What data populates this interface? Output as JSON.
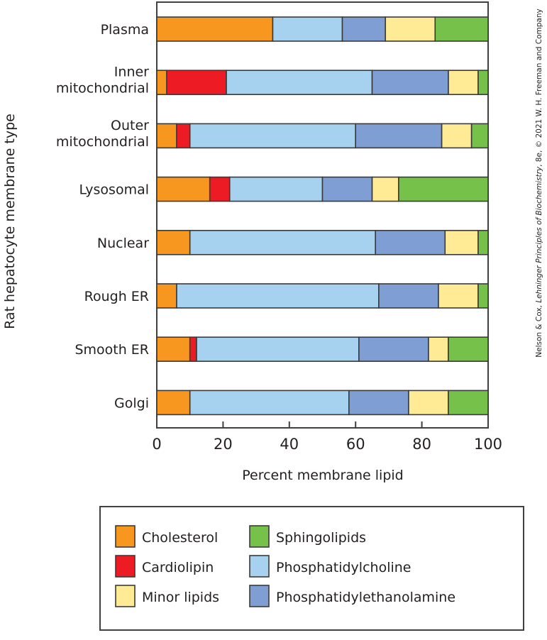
{
  "chart_data": {
    "type": "bar",
    "orientation": "horizontal",
    "stacked": true,
    "title": "",
    "xlabel": "Percent membrane lipid",
    "ylabel": "Rat hepatocyte membrane type",
    "xlim": [
      0,
      100
    ],
    "xticks": [
      "0",
      "20",
      "40",
      "60",
      "80",
      "100"
    ],
    "categories": [
      [
        "Plasma"
      ],
      [
        "Inner",
        "mitochondrial"
      ],
      [
        "Outer",
        "mitochondrial"
      ],
      [
        "Lysosomal"
      ],
      [
        "Nuclear"
      ],
      [
        "Rough ER"
      ],
      [
        "Smooth ER"
      ],
      [
        "Golgi"
      ]
    ],
    "stack_order": [
      "Cholesterol",
      "Cardiolipin",
      "Phosphatidylcholine",
      "Phosphatidylethanolamine",
      "Minor lipids",
      "Sphingolipids"
    ],
    "series": [
      {
        "name": "Cholesterol",
        "color": "#f7971f",
        "values": [
          35,
          3,
          6,
          16,
          10,
          6,
          10,
          10
        ]
      },
      {
        "name": "Cardiolipin",
        "color": "#ed1c24",
        "values": [
          0,
          18,
          4,
          6,
          0,
          0,
          2,
          0
        ]
      },
      {
        "name": "Phosphatidylcholine",
        "color": "#a6d2f0",
        "values": [
          21,
          44,
          50,
          28,
          56,
          61,
          49,
          48
        ]
      },
      {
        "name": "Phosphatidylethanolamine",
        "color": "#7f9fd4",
        "values": [
          13,
          23,
          26,
          15,
          21,
          18,
          21,
          18
        ]
      },
      {
        "name": "Minor lipids",
        "color": "#ffeb96",
        "values": [
          15,
          9,
          9,
          8,
          10,
          12,
          6,
          12
        ]
      },
      {
        "name": "Sphingolipids",
        "color": "#76c14a",
        "values": [
          16,
          3,
          5,
          27,
          3,
          3,
          12,
          12
        ]
      }
    ],
    "legend": {
      "placement": "bottom",
      "columns": [
        [
          "Cholesterol",
          "Cardiolipin",
          "Minor lipids"
        ],
        [
          "Sphingolipids",
          "Phosphatidylcholine",
          "Phosphatidylethanolamine"
        ]
      ]
    },
    "grid": false
  },
  "credit": {
    "prefix": "Nelson & Cox, ",
    "book": "Lehninger Principles of Biochemistry",
    "suffix": ", 8e, © 2021 W. H. Freeman and Company"
  }
}
